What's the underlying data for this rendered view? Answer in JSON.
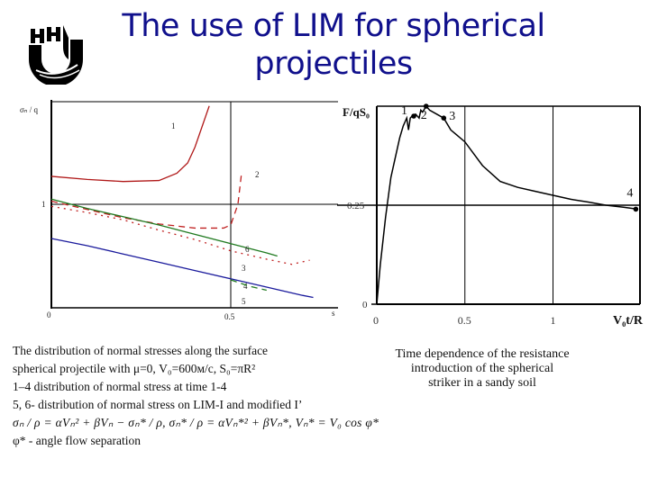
{
  "slide": {
    "title_line1": "The use of LIM for spherical",
    "title_line2": "projectiles",
    "logo": "university-logo-icon",
    "title_color": "#10108c"
  },
  "left_panel": {
    "notes": [
      "The distribution of normal stresses along the surface",
      "spherical projectile with  μ=0, V₀=600м/с, S₀=πR²",
      "1–4  distribution of normal stress at time 1-4",
      "5, 6- distribution of normal stress on LIM-I and modified I’",
      "σₙ / ρ = αVₙ² + βVₙ − σₙ* / ρ,    σₙ* / ρ = αVₙ*² + βVₙ*,    Vₙ* = V₀ cos φ*",
      "φ* - angle flow separation"
    ]
  },
  "right_panel": {
    "caption_lines": [
      "Time dependence of the resistance",
      "introduction of the spherical",
      "striker in a sandy soil"
    ]
  },
  "chart_data": [
    {
      "type": "line",
      "title": "",
      "ylabel": "σₙ / q",
      "xlabel": "s",
      "x_ticks": [
        "0",
        "0.5",
        "s"
      ],
      "y_ticks": [
        "1"
      ],
      "xlim": [
        0,
        0.8
      ],
      "ylim": [
        0,
        2
      ],
      "grid": true,
      "series": [
        {
          "name": "1",
          "color": "#b01818",
          "style": "solid",
          "x": [
            0,
            0.1,
            0.2,
            0.3,
            0.35,
            0.38,
            0.4,
            0.42,
            0.44
          ],
          "y": [
            1.27,
            1.24,
            1.22,
            1.23,
            1.3,
            1.4,
            1.55,
            1.75,
            1.95
          ]
        },
        {
          "name": "2",
          "color": "#c02020",
          "style": "dashed",
          "x": [
            0,
            0.1,
            0.2,
            0.3,
            0.4,
            0.48,
            0.5,
            0.52,
            0.53
          ],
          "y": [
            1.03,
            0.95,
            0.87,
            0.81,
            0.77,
            0.77,
            0.8,
            1.0,
            1.3
          ]
        },
        {
          "name": "3",
          "color": "#c02020",
          "style": "dotted",
          "x": [
            0,
            0.1,
            0.2,
            0.3,
            0.4,
            0.5,
            0.6,
            0.67,
            0.72
          ],
          "y": [
            0.98,
            0.92,
            0.85,
            0.75,
            0.66,
            0.55,
            0.47,
            0.42,
            0.46
          ]
        },
        {
          "name": "4",
          "color": "#1a1a9c",
          "style": "solid",
          "x": [
            0,
            0.1,
            0.2,
            0.3,
            0.4,
            0.5,
            0.6,
            0.7,
            0.73
          ],
          "y": [
            0.67,
            0.6,
            0.52,
            0.44,
            0.36,
            0.28,
            0.2,
            0.12,
            0.1
          ]
        },
        {
          "name": "5",
          "color": "#207a20",
          "style": "dashed",
          "x": [
            0.5,
            0.55,
            0.6
          ],
          "y": [
            0.27,
            0.21,
            0.17
          ]
        },
        {
          "name": "6",
          "color": "#207a20",
          "style": "solid",
          "x": [
            0,
            0.1,
            0.2,
            0.3,
            0.4,
            0.5,
            0.6,
            0.63
          ],
          "y": [
            1.05,
            0.96,
            0.88,
            0.8,
            0.71,
            0.62,
            0.53,
            0.5
          ]
        }
      ]
    },
    {
      "type": "line",
      "title": "",
      "ylabel": "F/qS₀",
      "xlabel": "V₀t/R",
      "x_ticks": [
        "0",
        "0.5",
        "1"
      ],
      "y_ticks": [
        "0",
        "0.25"
      ],
      "xlim": [
        0,
        1.5
      ],
      "ylim": [
        0,
        0.5
      ],
      "grid": true,
      "series": [
        {
          "name": "F/qS0",
          "color": "#000000",
          "x": [
            0,
            0.02,
            0.05,
            0.08,
            0.1,
            0.13,
            0.15,
            0.17,
            0.18,
            0.19,
            0.2,
            0.22,
            0.24,
            0.25,
            0.26,
            0.28,
            0.3,
            0.34,
            0.38,
            0.42,
            0.5,
            0.6,
            0.7,
            0.8,
            0.9,
            1.0,
            1.1,
            1.2,
            1.3,
            1.4,
            1.48
          ],
          "y": [
            0,
            0.1,
            0.22,
            0.32,
            0.36,
            0.42,
            0.45,
            0.47,
            0.44,
            0.47,
            0.475,
            0.48,
            0.47,
            0.49,
            0.485,
            0.5,
            0.49,
            0.48,
            0.47,
            0.44,
            0.41,
            0.35,
            0.31,
            0.295,
            0.285,
            0.275,
            0.265,
            0.258,
            0.25,
            0.245,
            0.24
          ]
        },
        {
          "name": "markers",
          "labels": [
            "1",
            "2",
            "3",
            "4"
          ],
          "x": [
            0.21,
            0.28,
            0.38,
            1.47
          ],
          "y": [
            0.475,
            0.5,
            0.47,
            0.24
          ]
        }
      ]
    }
  ]
}
